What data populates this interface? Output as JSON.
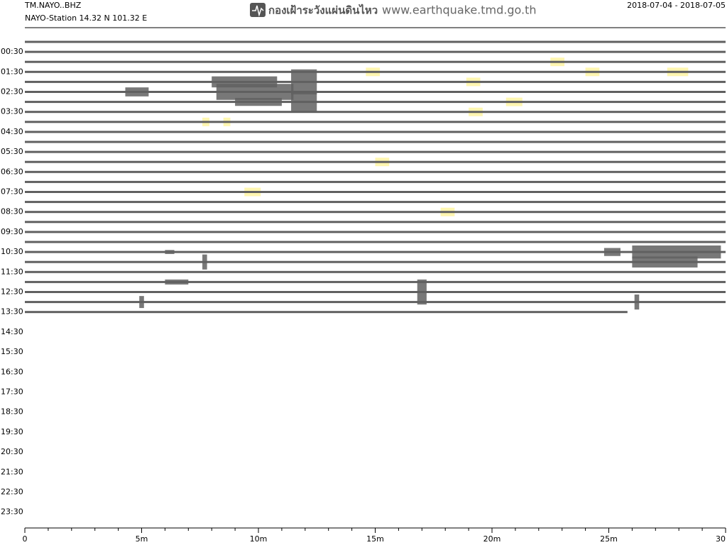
{
  "chart_data": {
    "type": "helicorder",
    "station": "TM.NAYO..BHZ",
    "location": "NAYO-Station  14.32 N 101.32 E",
    "agency": "กองเฝ้าระวังแผ่นดินไหว",
    "website": "www.earthquake.tmd.go.th",
    "date_range": "2018-07-04 - 2018-07-05",
    "trace_color": "#606060",
    "highlight_color": "#fff6b0",
    "ylabels": [
      "00:30",
      "01:30",
      "02:30",
      "03:30",
      "04:30",
      "05:30",
      "06:30",
      "07:30",
      "08:30",
      "09:30",
      "10:30",
      "11:30",
      "12:30",
      "13:30",
      "14:30",
      "15:30",
      "16:30",
      "17:30",
      "18:30",
      "19:30",
      "20:30",
      "21:30",
      "22:30",
      "23:30"
    ],
    "xlim": [
      0,
      30
    ],
    "xticks": [
      0,
      {
        "value": 5,
        "label": "5m"
      },
      {
        "value": 10,
        "label": "10m"
      },
      {
        "value": 15,
        "label": "15m"
      },
      {
        "value": 20,
        "label": "20m"
      },
      {
        "value": 25,
        "label": "25m"
      },
      30
    ],
    "xminor": [
      1,
      2,
      3,
      4,
      6,
      7,
      8,
      9,
      11,
      12,
      13,
      14,
      16,
      17,
      18,
      19,
      21,
      22,
      23,
      24,
      26,
      27,
      28,
      29
    ],
    "traces": [
      {
        "end": 30
      },
      {
        "end": 30
      },
      {
        "end": 30
      },
      {
        "end": 30
      },
      {
        "end": 30
      },
      {
        "end": 30
      },
      {
        "end": 30
      },
      {
        "end": 30
      },
      {
        "end": 30
      },
      {
        "end": 30
      },
      {
        "end": 30
      },
      {
        "end": 30
      },
      {
        "end": 30
      },
      {
        "end": 30
      },
      {
        "end": 30
      },
      {
        "end": 30
      },
      {
        "end": 30
      },
      {
        "end": 30
      },
      {
        "end": 30
      },
      {
        "end": 30
      },
      {
        "end": 30
      },
      {
        "end": 30
      },
      {
        "end": 30
      },
      {
        "end": 30
      },
      {
        "end": 30
      },
      {
        "end": 30
      },
      {
        "end": 30
      },
      {
        "end": 25.8
      }
    ],
    "bursts": [
      {
        "trace": 4,
        "start": 8.0,
        "end": 10.8,
        "amp": 1.1
      },
      {
        "trace": 5,
        "start": 4.3,
        "end": 5.3,
        "amp": 0.9
      },
      {
        "trace": 5,
        "start": 8.2,
        "end": 11.5,
        "amp": 1.6
      },
      {
        "trace": 6,
        "start": 9.0,
        "end": 11.0,
        "amp": 0.8
      },
      {
        "trace": 4,
        "start": 11.4,
        "end": 12.5,
        "amp": 2.5
      },
      {
        "trace": 6,
        "start": 11.4,
        "end": 12.5,
        "amp": 2.0
      },
      {
        "trace": 21,
        "start": 6.0,
        "end": 6.4,
        "amp": 0.4
      },
      {
        "trace": 21,
        "start": 24.8,
        "end": 25.5,
        "amp": 0.8
      },
      {
        "trace": 21,
        "start": 26.0,
        "end": 29.8,
        "amp": 1.3
      },
      {
        "trace": 22,
        "start": 7.6,
        "end": 7.8,
        "amp": 1.5
      },
      {
        "trace": 22,
        "start": 26.0,
        "end": 28.8,
        "amp": 1.1
      },
      {
        "trace": 24,
        "start": 6.0,
        "end": 7.0,
        "amp": 0.5
      },
      {
        "trace": 25,
        "start": 16.8,
        "end": 17.2,
        "amp": 2.5
      },
      {
        "trace": 26,
        "start": 4.9,
        "end": 5.1,
        "amp": 1.2
      },
      {
        "trace": 26,
        "start": 26.1,
        "end": 26.3,
        "amp": 1.5
      }
    ],
    "highlights": [
      {
        "trace": 2,
        "start": 22.5,
        "end": 23.1
      },
      {
        "trace": 3,
        "start": 14.6,
        "end": 15.2
      },
      {
        "trace": 3,
        "start": 24.0,
        "end": 24.6
      },
      {
        "trace": 3,
        "start": 27.5,
        "end": 28.4
      },
      {
        "trace": 4,
        "start": 18.9,
        "end": 19.5
      },
      {
        "trace": 6,
        "start": 20.6,
        "end": 21.3
      },
      {
        "trace": 7,
        "start": 19.0,
        "end": 19.6
      },
      {
        "trace": 8,
        "start": 7.6,
        "end": 7.9
      },
      {
        "trace": 8,
        "start": 8.5,
        "end": 8.8
      },
      {
        "trace": 12,
        "start": 15.0,
        "end": 15.6
      },
      {
        "trace": 15,
        "start": 9.4,
        "end": 10.1
      },
      {
        "trace": 17,
        "start": 17.8,
        "end": 18.4
      }
    ]
  }
}
